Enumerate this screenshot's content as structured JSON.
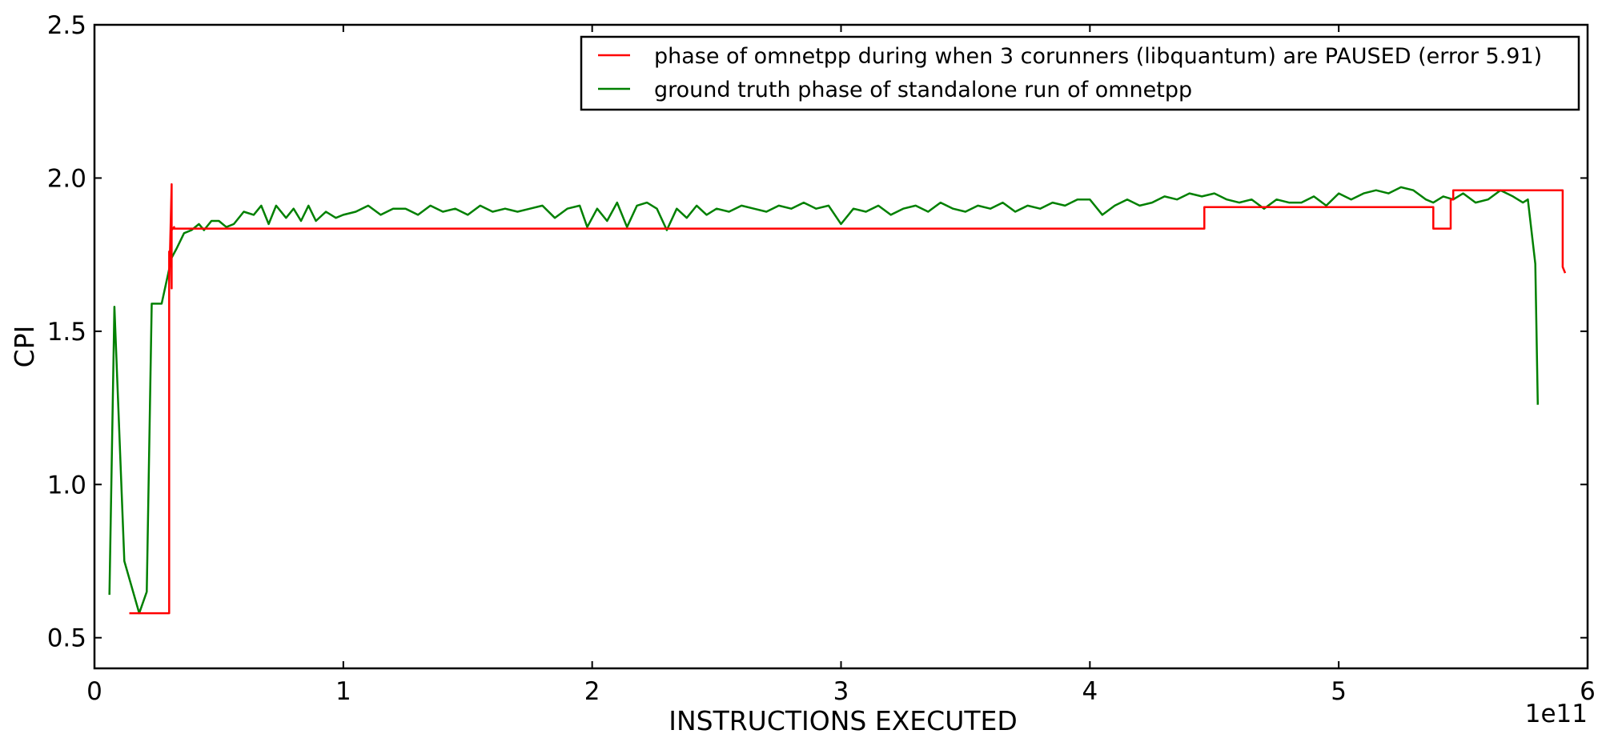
{
  "chart_data": {
    "type": "line",
    "title": "",
    "xlabel": "INSTRUCTIONS EXECUTED",
    "ylabel": "CPI",
    "x_offset_text": "1e11",
    "xlim": [
      0,
      6
    ],
    "ylim": [
      0.4,
      2.5
    ],
    "x_ticks": [
      0,
      1,
      2,
      3,
      4,
      5,
      6
    ],
    "x_tick_labels": [
      "0",
      "1",
      "2",
      "3",
      "4",
      "5",
      "6"
    ],
    "y_ticks": [
      0.5,
      1.0,
      1.5,
      2.0,
      2.5
    ],
    "y_tick_labels": [
      "0.5",
      "1.0",
      "1.5",
      "2.0",
      "2.5"
    ],
    "grid": false,
    "legend_position": "top-right",
    "legend": [
      "phase of omnetpp during when 3 corunners (libquantum) are PAUSED (error 5.91)",
      "ground truth phase of standalone run of omnetpp"
    ],
    "series": [
      {
        "name": "phase of omnetpp during when 3 corunners (libquantum) are PAUSED (error 5.91)",
        "color": "#ff0000",
        "x": [
          0.14,
          0.3,
          0.3,
          0.3,
          0.31,
          0.31,
          0.31,
          0.31,
          0.32,
          0.32,
          4.46,
          4.46,
          5.38,
          5.38,
          5.45,
          5.45,
          5.46,
          5.46,
          5.9,
          5.9,
          5.91
        ],
        "y": [
          0.58,
          0.58,
          1.76,
          1.65,
          1.98,
          1.64,
          1.97,
          1.83,
          1.84,
          1.835,
          1.835,
          1.905,
          1.905,
          1.835,
          1.835,
          1.93,
          1.93,
          1.96,
          1.96,
          1.71,
          1.69
        ]
      },
      {
        "name": "ground truth phase of standalone run of omnetpp",
        "color": "#008000",
        "x": [
          0.06,
          0.08,
          0.12,
          0.18,
          0.21,
          0.23,
          0.27,
          0.31,
          0.33,
          0.36,
          0.39,
          0.42,
          0.44,
          0.47,
          0.5,
          0.53,
          0.56,
          0.6,
          0.64,
          0.67,
          0.7,
          0.73,
          0.77,
          0.8,
          0.83,
          0.86,
          0.89,
          0.93,
          0.97,
          1.0,
          1.05,
          1.1,
          1.15,
          1.2,
          1.25,
          1.3,
          1.35,
          1.4,
          1.45,
          1.5,
          1.55,
          1.6,
          1.65,
          1.7,
          1.75,
          1.8,
          1.85,
          1.9,
          1.95,
          1.98,
          2.02,
          2.06,
          2.1,
          2.14,
          2.18,
          2.22,
          2.26,
          2.3,
          2.34,
          2.38,
          2.42,
          2.46,
          2.5,
          2.55,
          2.6,
          2.65,
          2.7,
          2.75,
          2.8,
          2.85,
          2.9,
          2.95,
          3.0,
          3.05,
          3.1,
          3.15,
          3.2,
          3.25,
          3.3,
          3.35,
          3.4,
          3.45,
          3.5,
          3.55,
          3.6,
          3.65,
          3.7,
          3.75,
          3.8,
          3.85,
          3.9,
          3.95,
          4.0,
          4.05,
          4.1,
          4.15,
          4.2,
          4.25,
          4.3,
          4.35,
          4.4,
          4.45,
          4.5,
          4.55,
          4.6,
          4.65,
          4.7,
          4.75,
          4.8,
          4.85,
          4.9,
          4.95,
          5.0,
          5.05,
          5.1,
          5.15,
          5.2,
          5.25,
          5.3,
          5.35,
          5.38,
          5.42,
          5.46,
          5.5,
          5.55,
          5.6,
          5.65,
          5.7,
          5.74,
          5.76,
          5.79,
          5.8
        ],
        "y": [
          0.64,
          1.58,
          0.75,
          0.58,
          0.65,
          1.59,
          1.59,
          1.74,
          1.77,
          1.82,
          1.83,
          1.85,
          1.83,
          1.86,
          1.86,
          1.84,
          1.85,
          1.89,
          1.88,
          1.91,
          1.85,
          1.91,
          1.87,
          1.9,
          1.86,
          1.91,
          1.86,
          1.89,
          1.87,
          1.88,
          1.89,
          1.91,
          1.88,
          1.9,
          1.9,
          1.88,
          1.91,
          1.89,
          1.9,
          1.88,
          1.91,
          1.89,
          1.9,
          1.89,
          1.9,
          1.91,
          1.87,
          1.9,
          1.91,
          1.84,
          1.9,
          1.86,
          1.92,
          1.84,
          1.91,
          1.92,
          1.9,
          1.83,
          1.9,
          1.87,
          1.91,
          1.88,
          1.9,
          1.89,
          1.91,
          1.9,
          1.89,
          1.91,
          1.9,
          1.92,
          1.9,
          1.91,
          1.85,
          1.9,
          1.89,
          1.91,
          1.88,
          1.9,
          1.91,
          1.89,
          1.92,
          1.9,
          1.89,
          1.91,
          1.9,
          1.92,
          1.89,
          1.91,
          1.9,
          1.92,
          1.91,
          1.93,
          1.93,
          1.88,
          1.91,
          1.93,
          1.91,
          1.92,
          1.94,
          1.93,
          1.95,
          1.94,
          1.95,
          1.93,
          1.92,
          1.93,
          1.9,
          1.93,
          1.92,
          1.92,
          1.94,
          1.91,
          1.95,
          1.93,
          1.95,
          1.96,
          1.95,
          1.97,
          1.96,
          1.93,
          1.92,
          1.94,
          1.93,
          1.95,
          1.92,
          1.93,
          1.96,
          1.94,
          1.92,
          1.93,
          1.72,
          1.26
        ]
      }
    ]
  }
}
